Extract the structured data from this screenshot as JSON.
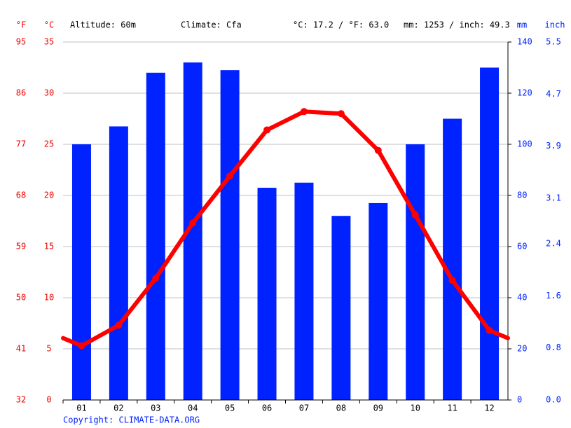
{
  "chart_data": {
    "type": "climate",
    "header": [
      "Altitude: 60m",
      "Climate: Cfa",
      "°C: 17.2 / °F: 63.0",
      "mm: 1253 / inch: 49.3"
    ],
    "axis_units": {
      "fahrenheit": "°F",
      "celsius": "°C",
      "mm": "mm",
      "inch": "inch"
    },
    "categories": [
      "01",
      "02",
      "03",
      "04",
      "05",
      "06",
      "07",
      "08",
      "09",
      "10",
      "11",
      "12"
    ],
    "series": [
      {
        "name": "Precipitation",
        "color": "#0022ff",
        "axis": "y2",
        "values": [
          100,
          107,
          128,
          132,
          129,
          83,
          85,
          72,
          77,
          100,
          110,
          130
        ]
      },
      {
        "name": "Temperature",
        "color": "#ff0000",
        "values": [
          5.3,
          7.3,
          11.9,
          17.3,
          21.9,
          26.4,
          28.2,
          28.0,
          24.4,
          18.1,
          11.7,
          6.8
        ]
      }
    ],
    "ylim": [
      0,
      35
    ],
    "yticks": [
      0,
      5,
      10,
      15,
      20,
      25,
      30,
      35
    ],
    "fahrenheit_lim": [
      32,
      95
    ],
    "fahrenheit_ticks": [
      32,
      41,
      50,
      59,
      68,
      77,
      86,
      95
    ],
    "y2lim": [
      0,
      140
    ],
    "y2ticks": [
      0,
      20,
      40,
      60,
      80,
      100,
      120,
      140
    ],
    "inch_lim": [
      0,
      5.5
    ],
    "inch_ticks": [
      {
        "value": 0,
        "label": "0.0"
      },
      0.8,
      1.6,
      2.4,
      3.1,
      3.9,
      4.7,
      5.5
    ],
    "grid": true,
    "copyright": "Copyright: CLIMATE-DATA.ORG"
  }
}
